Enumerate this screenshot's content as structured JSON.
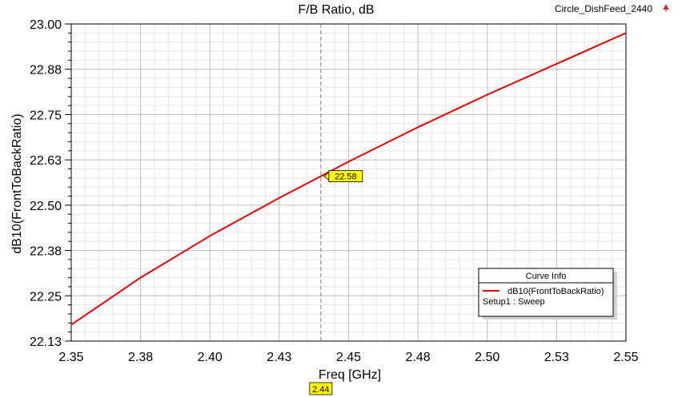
{
  "design_name": "Circle_DishFeed_2440",
  "chart_data": {
    "type": "line",
    "title": "F/B Ratio, dB",
    "xlabel": "Freq [GHz]",
    "ylabel": "dB10(FrontToBackRatio)",
    "xlim": [
      2.35,
      2.55
    ],
    "ylim": [
      22.125,
      23.0
    ],
    "x_ticks": [
      2.35,
      2.375,
      2.4,
      2.425,
      2.45,
      2.475,
      2.5,
      2.525,
      2.55
    ],
    "x_tick_labels": [
      "2.35",
      "2.38",
      "2.40",
      "2.43",
      "2.45",
      "2.48",
      "2.50",
      "2.53",
      "2.55"
    ],
    "y_ticks": [
      22.125,
      22.25,
      22.375,
      22.5,
      22.625,
      22.75,
      22.875,
      23.0
    ],
    "y_tick_labels": [
      "22.13",
      "22.25",
      "22.38",
      "22.50",
      "22.63",
      "22.75",
      "22.88",
      "23.00"
    ],
    "grid": true,
    "series": [
      {
        "name": "dB10(FrontToBackRatio)",
        "color": "#e00000",
        "x": [
          2.35,
          2.375,
          2.4,
          2.425,
          2.45,
          2.475,
          2.5,
          2.525,
          2.55
        ],
        "y": [
          22.17,
          22.3,
          22.415,
          22.52,
          22.62,
          22.715,
          22.805,
          22.89,
          22.975
        ]
      }
    ],
    "marker": {
      "x": 2.44,
      "y": 22.58,
      "y_label": "22.58",
      "x_label": "2.44",
      "color": "#ffff00"
    },
    "legend": {
      "title": "Curve Info",
      "entry": "dB10(FrontToBackRatio)",
      "subtext": "Setup1 : Sweep",
      "placement": "bottom-right"
    }
  }
}
